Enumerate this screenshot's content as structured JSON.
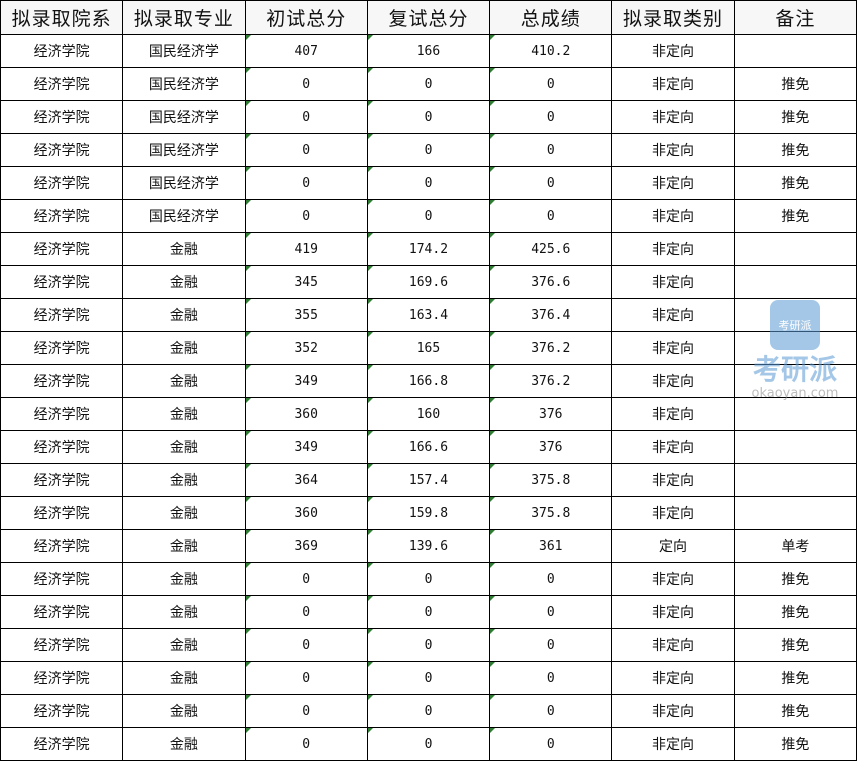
{
  "headers": [
    "拟录取院系",
    "拟录取专业",
    "初试总分",
    "复试总分",
    "总成绩",
    "拟录取类别",
    "备注"
  ],
  "rows": [
    [
      "经济学院",
      "国民经济学",
      "407",
      "166",
      "410.2",
      "非定向",
      ""
    ],
    [
      "经济学院",
      "国民经济学",
      "0",
      "0",
      "0",
      "非定向",
      "推免"
    ],
    [
      "经济学院",
      "国民经济学",
      "0",
      "0",
      "0",
      "非定向",
      "推免"
    ],
    [
      "经济学院",
      "国民经济学",
      "0",
      "0",
      "0",
      "非定向",
      "推免"
    ],
    [
      "经济学院",
      "国民经济学",
      "0",
      "0",
      "0",
      "非定向",
      "推免"
    ],
    [
      "经济学院",
      "国民经济学",
      "0",
      "0",
      "0",
      "非定向",
      "推免"
    ],
    [
      "经济学院",
      "金融",
      "419",
      "174.2",
      "425.6",
      "非定向",
      ""
    ],
    [
      "经济学院",
      "金融",
      "345",
      "169.6",
      "376.6",
      "非定向",
      ""
    ],
    [
      "经济学院",
      "金融",
      "355",
      "163.4",
      "376.4",
      "非定向",
      ""
    ],
    [
      "经济学院",
      "金融",
      "352",
      "165",
      "376.2",
      "非定向",
      ""
    ],
    [
      "经济学院",
      "金融",
      "349",
      "166.8",
      "376.2",
      "非定向",
      ""
    ],
    [
      "经济学院",
      "金融",
      "360",
      "160",
      "376",
      "非定向",
      ""
    ],
    [
      "经济学院",
      "金融",
      "349",
      "166.6",
      "376",
      "非定向",
      ""
    ],
    [
      "经济学院",
      "金融",
      "364",
      "157.4",
      "375.8",
      "非定向",
      ""
    ],
    [
      "经济学院",
      "金融",
      "360",
      "159.8",
      "375.8",
      "非定向",
      ""
    ],
    [
      "经济学院",
      "金融",
      "369",
      "139.6",
      "361",
      "定向",
      "单考"
    ],
    [
      "经济学院",
      "金融",
      "0",
      "0",
      "0",
      "非定向",
      "推免"
    ],
    [
      "经济学院",
      "金融",
      "0",
      "0",
      "0",
      "非定向",
      "推免"
    ],
    [
      "经济学院",
      "金融",
      "0",
      "0",
      "0",
      "非定向",
      "推免"
    ],
    [
      "经济学院",
      "金融",
      "0",
      "0",
      "0",
      "非定向",
      "推免"
    ],
    [
      "经济学院",
      "金融",
      "0",
      "0",
      "0",
      "非定向",
      "推免"
    ],
    [
      "经济学院",
      "金融",
      "0",
      "0",
      "0",
      "非定向",
      "推免"
    ]
  ],
  "watermark": {
    "logo": "考研派",
    "name": "考研派",
    "url": "okaoyan.com"
  }
}
